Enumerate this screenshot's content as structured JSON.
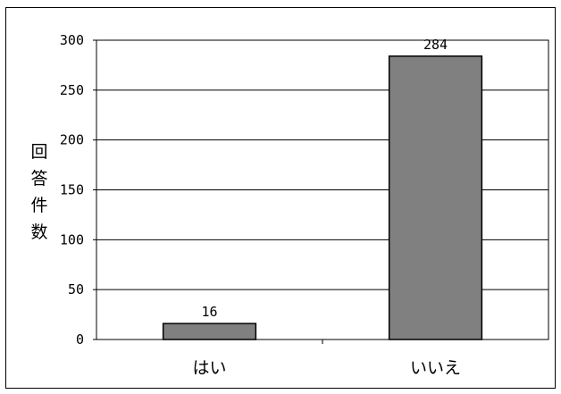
{
  "chart_data": {
    "type": "bar",
    "categories": [
      "はい",
      "いいえ"
    ],
    "values": [
      16,
      284
    ],
    "data_labels": [
      "16",
      "284"
    ],
    "ylabel": "回答件数",
    "xlabel": "",
    "ylim": [
      0,
      300
    ],
    "yticks": [
      0,
      50,
      100,
      150,
      200,
      250,
      300
    ],
    "grid": true,
    "bar_color": "#808080"
  }
}
